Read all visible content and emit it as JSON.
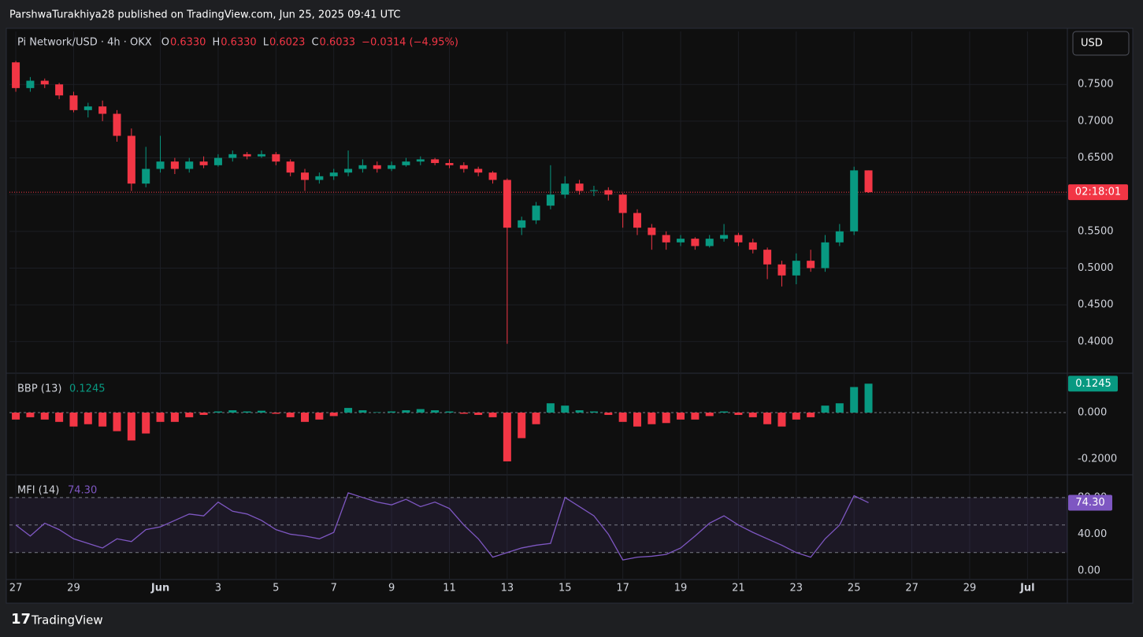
{
  "page": {
    "publisher_line": "ParshwaTurakhiya28 published on TradingView.com, Jun 25, 2025 09:41 UTC",
    "currency_button": "USD",
    "brand": "TradingView"
  },
  "chart_data": [
    {
      "type": "candlestick",
      "title": "Pi Network/USD · 4h · OKX",
      "ohlc_labels": [
        {
          "key": "O",
          "value": "0.6330"
        },
        {
          "key": "H",
          "value": "0.6330"
        },
        {
          "key": "L",
          "value": "0.6023"
        },
        {
          "key": "C",
          "value": "0.6033"
        }
      ],
      "change": "−0.0314 (−4.95%)",
      "last_price": 0.6033,
      "countdown": "02:18:01",
      "up_color": "#089981",
      "down_color": "#f23645",
      "grid": true,
      "x": [
        0,
        0.5,
        1,
        1.5,
        2,
        2.5,
        3,
        3.5,
        4,
        4.5,
        5,
        5.5,
        6,
        6.5,
        7,
        7.5,
        8,
        8.5,
        9,
        9.5,
        10,
        10.5,
        11,
        11.5,
        12,
        12.5,
        13,
        13.5,
        14,
        14.5,
        15,
        15.5,
        16,
        16.5,
        17,
        17.5,
        18,
        18.5,
        19,
        19.5,
        20,
        20.5,
        21,
        21.5,
        22,
        22.5,
        23,
        23.5,
        24,
        24.5,
        25,
        25.5,
        26,
        26.5,
        27,
        27.5,
        28,
        28.5,
        29,
        29.5
      ],
      "open": [
        0.78,
        0.745,
        0.755,
        0.75,
        0.735,
        0.715,
        0.72,
        0.71,
        0.68,
        0.615,
        0.635,
        0.645,
        0.635,
        0.645,
        0.64,
        0.65,
        0.655,
        0.652,
        0.655,
        0.645,
        0.63,
        0.62,
        0.625,
        0.63,
        0.635,
        0.64,
        0.635,
        0.64,
        0.645,
        0.648,
        0.643,
        0.64,
        0.635,
        0.63,
        0.62,
        0.555,
        0.565,
        0.585,
        0.6,
        0.615,
        0.605,
        0.606,
        0.6,
        0.575,
        0.555,
        0.545,
        0.535,
        0.54,
        0.53,
        0.54,
        0.545,
        0.535,
        0.525,
        0.505,
        0.49,
        0.51,
        0.5,
        0.535,
        0.55,
        0.633
      ],
      "high": [
        0.782,
        0.76,
        0.758,
        0.752,
        0.74,
        0.725,
        0.728,
        0.715,
        0.69,
        0.665,
        0.68,
        0.65,
        0.65,
        0.652,
        0.655,
        0.66,
        0.658,
        0.66,
        0.658,
        0.648,
        0.635,
        0.63,
        0.635,
        0.66,
        0.648,
        0.645,
        0.645,
        0.65,
        0.652,
        0.65,
        0.648,
        0.644,
        0.638,
        0.632,
        0.622,
        0.57,
        0.59,
        0.64,
        0.625,
        0.62,
        0.612,
        0.61,
        0.602,
        0.58,
        0.56,
        0.55,
        0.545,
        0.542,
        0.545,
        0.56,
        0.548,
        0.54,
        0.528,
        0.51,
        0.52,
        0.525,
        0.545,
        0.56,
        0.638,
        0.633
      ],
      "low": [
        0.74,
        0.74,
        0.745,
        0.73,
        0.712,
        0.705,
        0.7,
        0.672,
        0.605,
        0.61,
        0.63,
        0.628,
        0.63,
        0.636,
        0.638,
        0.645,
        0.648,
        0.65,
        0.64,
        0.625,
        0.605,
        0.615,
        0.62,
        0.625,
        0.63,
        0.63,
        0.632,
        0.638,
        0.64,
        0.64,
        0.636,
        0.63,
        0.625,
        0.615,
        0.397,
        0.545,
        0.56,
        0.58,
        0.595,
        0.6,
        0.598,
        0.592,
        0.555,
        0.545,
        0.525,
        0.525,
        0.53,
        0.525,
        0.528,
        0.536,
        0.53,
        0.52,
        0.485,
        0.475,
        0.478,
        0.495,
        0.495,
        0.53,
        0.545,
        0.6023
      ],
      "close": [
        0.745,
        0.755,
        0.75,
        0.735,
        0.715,
        0.72,
        0.71,
        0.68,
        0.615,
        0.635,
        0.645,
        0.635,
        0.645,
        0.64,
        0.65,
        0.655,
        0.652,
        0.655,
        0.645,
        0.63,
        0.62,
        0.625,
        0.63,
        0.635,
        0.64,
        0.635,
        0.64,
        0.645,
        0.648,
        0.643,
        0.64,
        0.635,
        0.63,
        0.62,
        0.555,
        0.565,
        0.585,
        0.6,
        0.615,
        0.605,
        0.606,
        0.6,
        0.575,
        0.555,
        0.545,
        0.535,
        0.54,
        0.53,
        0.54,
        0.545,
        0.535,
        0.525,
        0.505,
        0.49,
        0.51,
        0.5,
        0.535,
        0.55,
        0.633,
        0.6033
      ],
      "xlim": [
        -0.22,
        36.38
      ],
      "xticks": [
        {
          "value": 0,
          "label": "27"
        },
        {
          "value": 2,
          "label": "29"
        },
        {
          "value": 5,
          "label": "Jun"
        },
        {
          "value": 7,
          "label": "3"
        },
        {
          "value": 9,
          "label": "5"
        },
        {
          "value": 11,
          "label": "7"
        },
        {
          "value": 13,
          "label": "9"
        },
        {
          "value": 15,
          "label": "11"
        },
        {
          "value": 17,
          "label": "13"
        },
        {
          "value": 19,
          "label": "15"
        },
        {
          "value": 21,
          "label": "17"
        },
        {
          "value": 23,
          "label": "19"
        },
        {
          "value": 25,
          "label": "21"
        },
        {
          "value": 27,
          "label": "23"
        },
        {
          "value": 29,
          "label": "25"
        },
        {
          "value": 31,
          "label": "27"
        },
        {
          "value": 33,
          "label": "29"
        },
        {
          "value": 35,
          "label": "Jul"
        }
      ],
      "ylim": [
        0.358,
        0.822
      ],
      "yticks": [
        {
          "value": 0.4,
          "label": "0.4000"
        },
        {
          "value": 0.45,
          "label": "0.4500"
        },
        {
          "value": 0.5,
          "label": "0.5000"
        },
        {
          "value": 0.55,
          "label": "0.5500"
        },
        {
          "value": 0.6,
          "label": "0.6000"
        },
        {
          "value": 0.65,
          "label": "0.6500"
        },
        {
          "value": 0.7,
          "label": "0.7000"
        },
        {
          "value": 0.75,
          "label": "0.7500"
        }
      ]
    },
    {
      "type": "bar",
      "title": "BBP (13)",
      "current": "0.1245",
      "up_color": "#089981",
      "down_color": "#f23645",
      "x": [
        0,
        0.5,
        1,
        1.5,
        2,
        2.5,
        3,
        3.5,
        4,
        4.5,
        5,
        5.5,
        6,
        6.5,
        7,
        7.5,
        8,
        8.5,
        9,
        9.5,
        10,
        10.5,
        11,
        11.5,
        12,
        12.5,
        13,
        13.5,
        14,
        14.5,
        15,
        15.5,
        16,
        16.5,
        17,
        17.5,
        18,
        18.5,
        19,
        19.5,
        20,
        20.5,
        21,
        21.5,
        22,
        22.5,
        23,
        23.5,
        24,
        24.5,
        25,
        25.5,
        26,
        26.5,
        27,
        27.5,
        28,
        28.5,
        29,
        29.5
      ],
      "values": [
        -0.03,
        -0.02,
        -0.03,
        -0.04,
        -0.06,
        -0.05,
        -0.06,
        -0.08,
        -0.12,
        -0.09,
        -0.04,
        -0.04,
        -0.02,
        -0.01,
        0.005,
        0.01,
        0.005,
        0.008,
        -0.005,
        -0.02,
        -0.04,
        -0.03,
        -0.015,
        0.02,
        0.01,
        0.002,
        0.005,
        0.01,
        0.015,
        0.01,
        0.005,
        -0.005,
        -0.01,
        -0.02,
        -0.21,
        -0.11,
        -0.05,
        0.04,
        0.03,
        0.01,
        0.005,
        -0.01,
        -0.04,
        -0.06,
        -0.05,
        -0.045,
        -0.03,
        -0.03,
        -0.015,
        0.005,
        -0.01,
        -0.02,
        -0.05,
        -0.06,
        -0.03,
        -0.02,
        0.03,
        0.04,
        0.11,
        0.1245
      ],
      "ylim": [
        -0.2644,
        0.1627
      ],
      "yticks": [
        {
          "value": -0.2,
          "label": "-0.2000"
        },
        {
          "value": 0,
          "label": "0.000"
        }
      ]
    },
    {
      "type": "line",
      "title": "MFI (14)",
      "current": "74.30",
      "color": "#7e57c2",
      "band": [
        20,
        80
      ],
      "midline": 50,
      "x": [
        0,
        0.5,
        1,
        1.5,
        2,
        2.5,
        3,
        3.5,
        4,
        4.5,
        5,
        5.5,
        6,
        6.5,
        7,
        7.5,
        8,
        8.5,
        9,
        9.5,
        10,
        10.5,
        11,
        11.5,
        12,
        12.5,
        13,
        13.5,
        14,
        14.5,
        15,
        15.5,
        16,
        16.5,
        17,
        17.5,
        18,
        18.5,
        19,
        19.5,
        20,
        20.5,
        21,
        21.5,
        22,
        22.5,
        23,
        23.5,
        24,
        24.5,
        25,
        25.5,
        26,
        26.5,
        27,
        27.5,
        28,
        28.5,
        29,
        29.5
      ],
      "values": [
        50,
        38,
        52,
        45,
        35,
        30,
        25,
        35,
        32,
        45,
        48,
        55,
        62,
        60,
        75,
        65,
        62,
        55,
        45,
        40,
        38,
        35,
        42,
        85,
        80,
        75,
        72,
        78,
        70,
        75,
        68,
        50,
        35,
        15,
        20,
        25,
        28,
        30,
        80,
        70,
        60,
        40,
        12,
        15,
        16,
        18,
        25,
        38,
        52,
        60,
        50,
        42,
        35,
        28,
        20,
        15,
        35,
        50,
        82,
        74.3
      ],
      "ylim": [
        -8.5,
        103
      ],
      "yticks": [
        {
          "value": 0,
          "label": "0.00"
        },
        {
          "value": 40,
          "label": "40.00"
        },
        {
          "value": 80,
          "label": "80.00"
        }
      ]
    }
  ]
}
